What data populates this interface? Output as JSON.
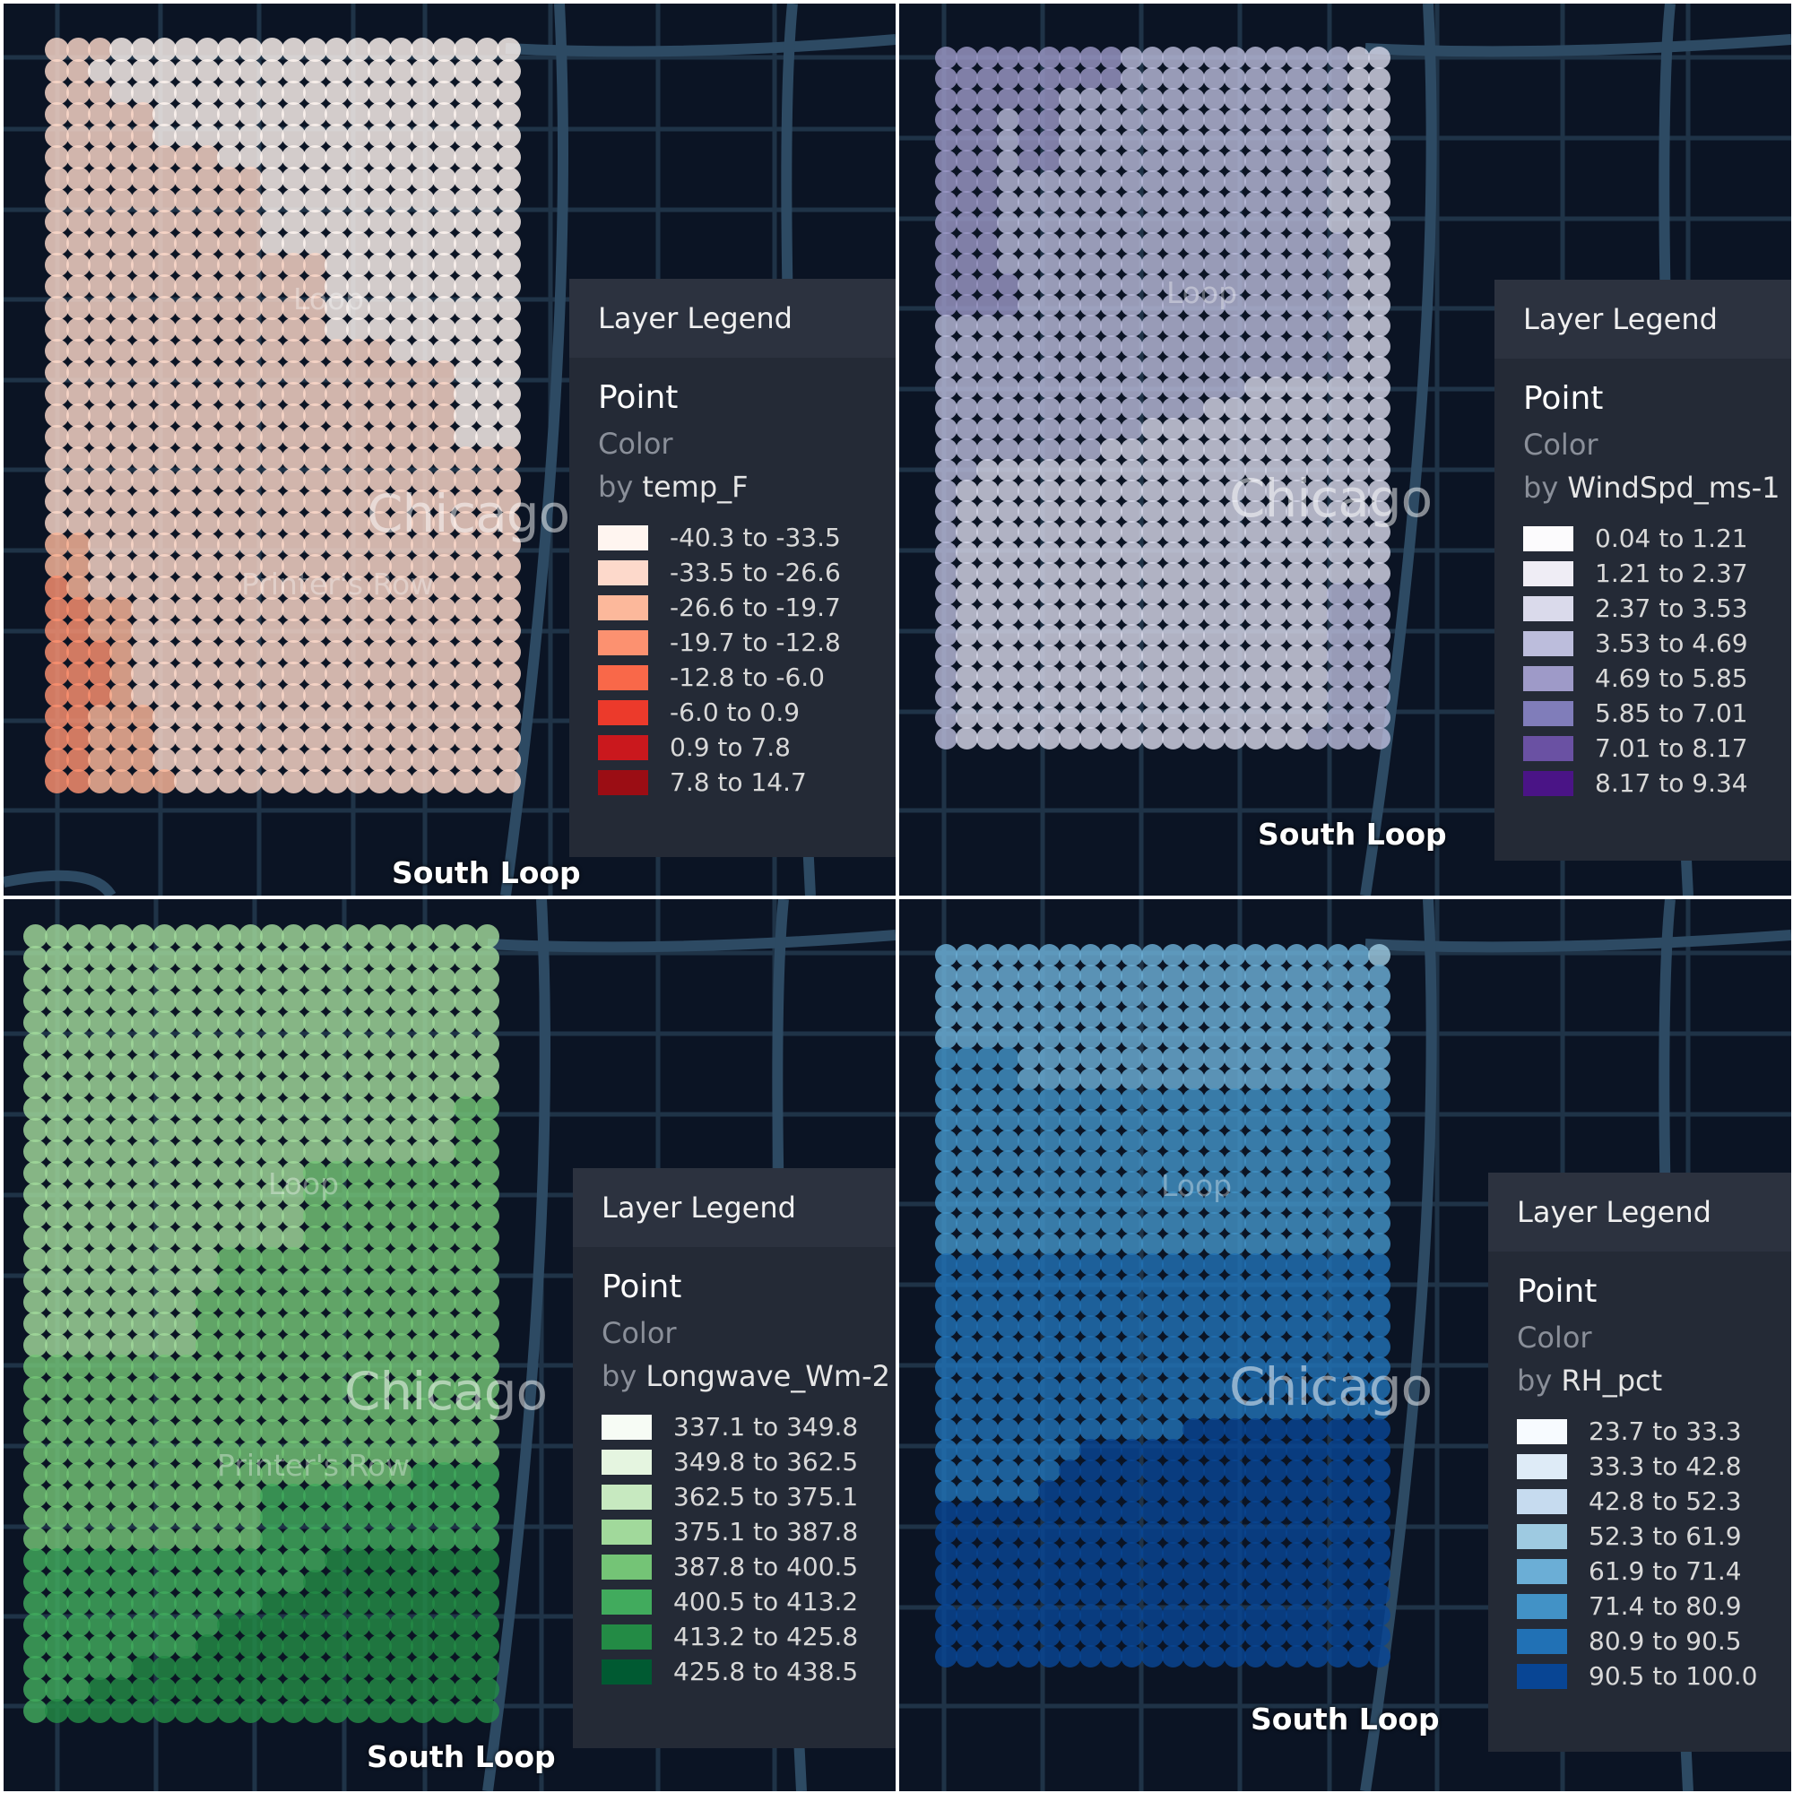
{
  "panels": [
    {
      "id": "temp",
      "place_labels": {
        "chicago": "Chicago",
        "loop": "Loop",
        "printers_row": "Printer's Row",
        "south_loop": "South Loop"
      },
      "legend": {
        "title": "Layer Legend",
        "layer": "Point",
        "property": "Color",
        "by": "by",
        "field": "temp_F",
        "bins": [
          {
            "label": "-40.3 to -33.5",
            "color": "#fff5f0"
          },
          {
            "label": "-33.5 to -26.6",
            "color": "#fdd9cb"
          },
          {
            "label": "-26.6 to -19.7",
            "color": "#fcb89b"
          },
          {
            "label": "-19.7 to -12.8",
            "color": "#fc9170"
          },
          {
            "label": "-12.8 to -6.0",
            "color": "#f96849"
          },
          {
            "label": "-6.0 to 0.9",
            "color": "#ec3a2b"
          },
          {
            "label": "0.9 to 7.8",
            "color": "#ca181d"
          },
          {
            "label": "7.8 to 14.7",
            "color": "#9b0d14"
          }
        ]
      },
      "point_bins": [
        "1110000000000000000000",
        "1100000000000000000000",
        "1110000000000000000000",
        "1111100000000000000000",
        "1111100000000000000000",
        "1111111100000000000000",
        "1111111111000000000000",
        "1111111111000000000000",
        "1111111111000000000000",
        "1111111111000000000000",
        "1111111111111000000000",
        "1111111111111000000000",
        "1111111111111000000000",
        "1111111111111000000000",
        "1111111111111111000000",
        "1111111111111111111000",
        "1111111111111111111000",
        "1111111111111111111000",
        "1111111111111111111000",
        "1111111111111111111111",
        "1111111111111111111111",
        "1111111111111111111111",
        "1111111111111111111111",
        "2211111111111111111111",
        "2211111111111111111111",
        "3211111111111111111111",
        "3322111111111111111111",
        "3322111111111111111111",
        "3332111111111111111111",
        "3332111111111111111111",
        "3332111111111111111111",
        "3322211111111111111111",
        "3322211111111111111111",
        "3322211111111111111111",
        "3322221111111111111111"
      ]
    },
    {
      "id": "wind",
      "place_labels": {
        "chicago": "Chicago",
        "loop": "Loop",
        "south_loop": "South Loop"
      },
      "legend": {
        "title": "Layer Legend",
        "layer": "Point",
        "property": "Color",
        "by": "by",
        "field": "WindSpd_ms-1",
        "bins": [
          {
            "label": "0.04 to 1.21",
            "color": "#fcfbfd"
          },
          {
            "label": "1.21 to 2.37",
            "color": "#efedf5"
          },
          {
            "label": "2.37 to 3.53",
            "color": "#dadaeb"
          },
          {
            "label": "3.53 to 4.69",
            "color": "#bcbddc"
          },
          {
            "label": "4.69 to 5.85",
            "color": "#9e9ac8"
          },
          {
            "label": "5.85 to 7.01",
            "color": "#807dba"
          },
          {
            "label": "7.01 to 8.17",
            "color": "#6a51a3"
          },
          {
            "label": "8.17 to 9.34",
            "color": "#4a1486"
          }
        ]
      },
      "point_bins": [
        "4444444443333333333322",
        "4444444443333333333322",
        "4444443333333333333322",
        "4443443333333333333222",
        "4443443333333333333222",
        "4443443333333333333222",
        "4443333333333333333222",
        "4443333333333333333222",
        "4443333333333333333222",
        "4443333333333333333322",
        "4443333333333333333322",
        "4444333333333333333322",
        "4444333333333333333322",
        "3333333333333333333322",
        "3333333333333333333322",
        "3333333333333333333322",
        "3333333333333332222222",
        "3333333333333222222222",
        "3333333333222222222222",
        "3333333322222222222222",
        "3322222222222222222222",
        "3222222222222222222222",
        "3222222222222222222222",
        "3222222222222222222222",
        "3222222222222222222222",
        "3222222222222222222222",
        "3222222222222222222333",
        "3222222222222222222333",
        "3222222222222222222333",
        "3222222222222222222333",
        "3222222222222222222333",
        "3222222222222222222333",
        "3222222222222222222333",
        "3222222222222222223333"
      ]
    },
    {
      "id": "longwave",
      "place_labels": {
        "chicago": "Chicago",
        "loop": "Loop",
        "printers_row": "Printer's Row",
        "south_loop": "South Loop"
      },
      "legend": {
        "title": "Layer Legend",
        "layer": "Point",
        "property": "Color",
        "by": "by",
        "field": "Longwave_Wm-2",
        "bins": [
          {
            "label": "337.1 to 349.8",
            "color": "#f7fcf5"
          },
          {
            "label": "349.8 to 362.5",
            "color": "#e5f5e0"
          },
          {
            "label": "362.5 to 375.1",
            "color": "#c7e9c0"
          },
          {
            "label": "375.1 to 387.8",
            "color": "#a1d99b"
          },
          {
            "label": "387.8 to 400.5",
            "color": "#74c476"
          },
          {
            "label": "400.5 to 413.2",
            "color": "#41ab5d"
          },
          {
            "label": "413.2 to 425.8",
            "color": "#238b45"
          },
          {
            "label": "425.8 to 438.5",
            "color": "#005a32"
          }
        ]
      },
      "point_bins": [
        "3333333333333333333333",
        "3333333333333333333333",
        "3333333333333333333333",
        "3333333333333333333333",
        "3333333333333333333333",
        "3333333333333333333333",
        "3333333333333333333333",
        "3333333333333333333333",
        "3333333333333333333344",
        "3333333333333333333344",
        "3333333333333333333344",
        "3333333333333444444444",
        "3333333333333444444444",
        "3333333333333444444444",
        "3333333333333444444444",
        "3333333334444444444444",
        "3333333334444444444444",
        "3333333344444444444444",
        "3333333344444444444444",
        "3333333344444444444444",
        "4444444444444444444444",
        "4444444444444444444444",
        "4444444444444444444444",
        "4444444444444444444444",
        "4444444444444444444444",
        "4444444444444444445555",
        "4444444444455555555555",
        "4444444444455555555555",
        "4444444444455555555555",
        "5555555555555566666666",
        "5555555555555666666666",
        "5555555555566666666666",
        "5555555556666666666666",
        "5555555566666666666666",
        "5555566666666666666666",
        "5556666666666666666666",
        "5666666666666666666666"
      ]
    },
    {
      "id": "rh",
      "place_labels": {
        "chicago": "Chicago",
        "loop": "Loop",
        "south_loop": "South Loop"
      },
      "legend": {
        "title": "Layer Legend",
        "layer": "Point",
        "property": "Color",
        "by": "by",
        "field": "RH_pct",
        "bins": [
          {
            "label": "23.7 to 33.3",
            "color": "#f7fbff"
          },
          {
            "label": "33.3 to 42.8",
            "color": "#deebf7"
          },
          {
            "label": "42.8 to 52.3",
            "color": "#c6dbef"
          },
          {
            "label": "52.3 to 61.9",
            "color": "#9ecae1"
          },
          {
            "label": "61.9 to 71.4",
            "color": "#6baed6"
          },
          {
            "label": "71.4 to 80.9",
            "color": "#4292c6"
          },
          {
            "label": "80.9 to 90.5",
            "color": "#2171b5"
          },
          {
            "label": "90.5 to 100.0",
            "color": "#084594"
          }
        ]
      },
      "point_bins": [
        "4444444444444444444443",
        "4444444444444444444444",
        "4444444444444444444444",
        "4444444444444444444444",
        "4444444444444444444444",
        "5555444444444444444444",
        "5555444444444444444444",
        "5555555555555555555555",
        "5555555555555555555555",
        "5555555555555555555555",
        "5555555555555555555555",
        "5555555555555555555555",
        "5555555555555555555555",
        "5555555555555555555555",
        "5555555555555555555555",
        "6666666666666666666666",
        "6666666666666666666666",
        "6666666666666666666666",
        "6666666666666666666666",
        "6666666666666666666666",
        "6666666666666666666666",
        "6666666666666666666666",
        "6666666666666666666666",
        "6666666666667777777777",
        "6666666777777777777777",
        "6666667777777777777777",
        "6666677777777777777777",
        "7777777777777777777777",
        "7777777777777777777777",
        "7777777777777777777777",
        "7777777777777777777777",
        "7777777777777777777777",
        "7777777777777777777777",
        "7777777777777777777777",
        "7777777777777777777777"
      ]
    }
  ]
}
